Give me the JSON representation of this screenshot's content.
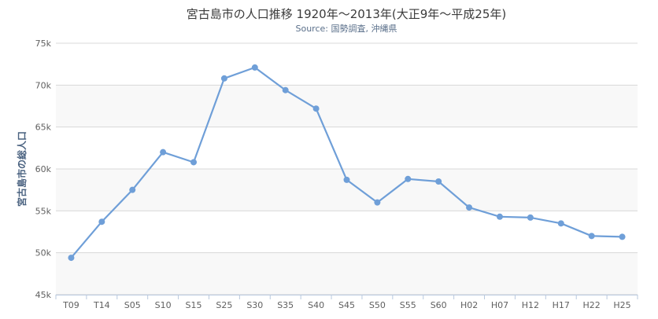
{
  "chart_data": {
    "type": "line",
    "title": "宮古島市の人口推移 1920年～2013年(大正9年～平成25年)",
    "subtitle": "Source: 国勢調査, 沖縄県",
    "xlabel": "",
    "ylabel": "宮古島市の総人口",
    "ylim": [
      45000,
      75000
    ],
    "yticks": [
      45000,
      50000,
      55000,
      60000,
      65000,
      70000,
      75000
    ],
    "ytick_labels": [
      "45k",
      "50k",
      "55k",
      "60k",
      "65k",
      "70k",
      "75k"
    ],
    "categories": [
      "T09",
      "T14",
      "S05",
      "S10",
      "S15",
      "S25",
      "S30",
      "S35",
      "S40",
      "S45",
      "S50",
      "S55",
      "S60",
      "H02",
      "H07",
      "H12",
      "H17",
      "H22",
      "H25"
    ],
    "series": [
      {
        "name": "",
        "values": [
          49400,
          53700,
          57500,
          62000,
          60800,
          70800,
          72100,
          69400,
          67200,
          58700,
          56000,
          58800,
          58500,
          55400,
          54300,
          54200,
          53500,
          52000,
          51900
        ]
      }
    ],
    "line_color": "#6f9fd8",
    "grid": true,
    "legend": "none"
  }
}
